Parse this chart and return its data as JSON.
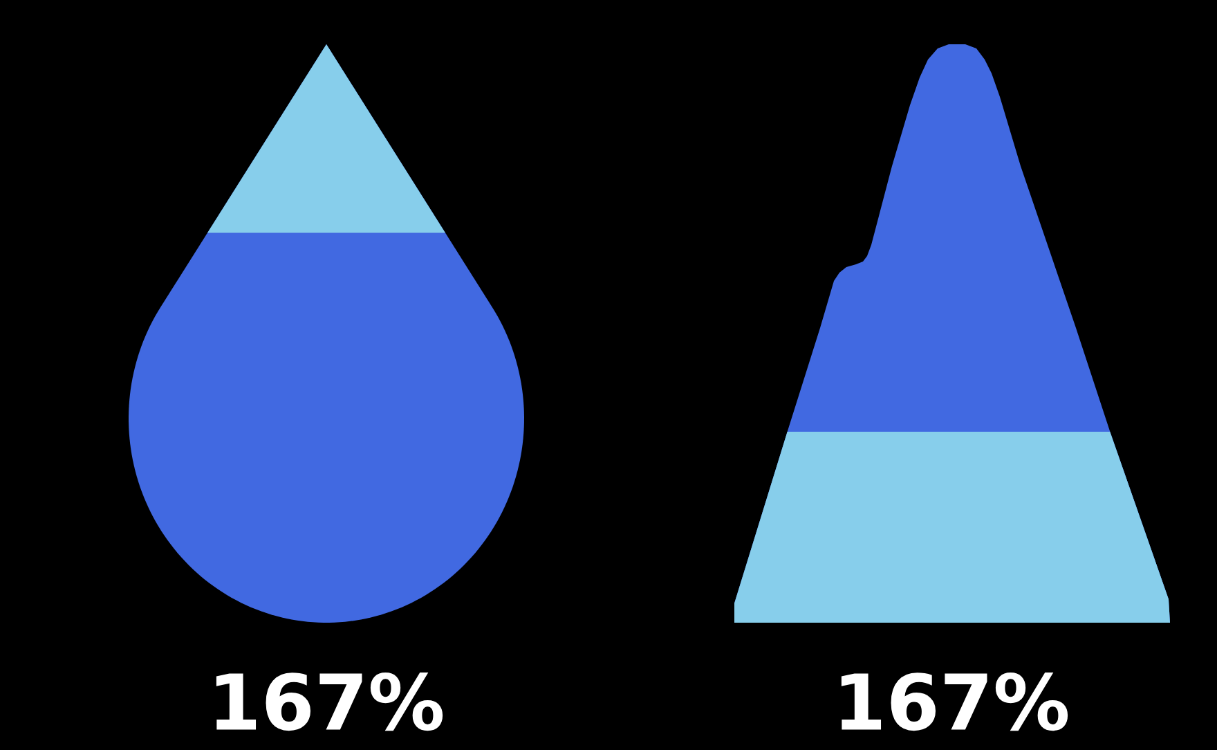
{
  "chart_data": {
    "type": "other",
    "categories": [
      null,
      null
    ],
    "values": [
      167,
      167
    ],
    "value_labels": [
      "167%",
      "167%"
    ],
    "colors": [
      "#4169e1",
      "#4169e1"
    ]
  }
}
